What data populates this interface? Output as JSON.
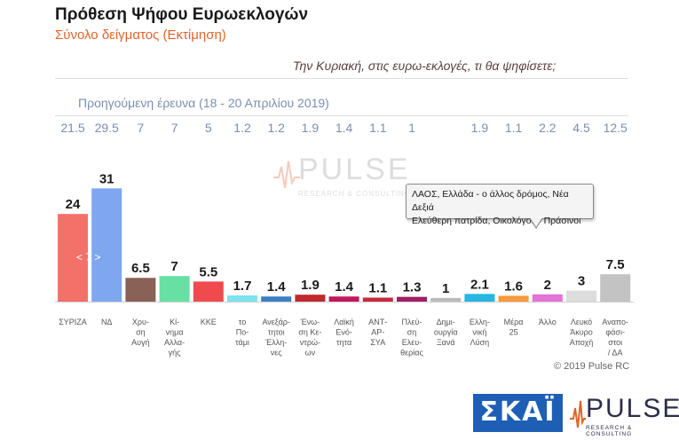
{
  "title": "Πρόθεση Ψήφου Ευρωεκλογών",
  "subtitle": "Σύνολο δείγματος   (Εκτίμηση)",
  "question": "Την Κυριακή, στις ευρω-εκλογές, τι θα ψηφίσετε;",
  "previous_survey_label": "Προηγούμενη έρευνα  (18 - 20 Απριλίου 2019)",
  "pager": "< 7 >",
  "tooltip": {
    "line1": "ΛΑΟΣ, Ελλάδα - ο άλλος δρόμος, Νέα Δεξιά",
    "line2": "Ελεύθερη πατρίδα, Οικολόγοι – Πράσινοι"
  },
  "watermark": {
    "name": "PULSE",
    "tagline": "RESEARCH & CONSULTING"
  },
  "copyright": "© 2019 Pulse RC",
  "logos": {
    "skai": "ΣΚΑΪ",
    "pulse": "PULSE",
    "pulse_tagline": "RESEARCH & CONSULTING"
  },
  "chart_data": {
    "type": "bar",
    "ylim": [
      0,
      34
    ],
    "categories": [
      [
        "ΣΥΡΙΖΑ"
      ],
      [
        "ΝΔ"
      ],
      [
        "Χρυ-",
        "ση",
        "Αυγή"
      ],
      [
        "Κί-",
        "νημα",
        "Αλλα-",
        "γής"
      ],
      [
        "ΚΚΕ"
      ],
      [
        "το",
        "Πο-",
        "τάμι"
      ],
      [
        "Ανεξάρ-",
        "τητοι",
        "Έλλη-",
        "νες"
      ],
      [
        "Ένω-",
        "ση Κε-",
        "ντρώ-",
        "ων"
      ],
      [
        "Λαϊκή",
        "Ενό-",
        "τητα"
      ],
      [
        "ΑΝΤ-",
        "ΑΡ-",
        "ΣΥΑ"
      ],
      [
        "Πλεύ-",
        "ση",
        "Ελευ-",
        "θερίας"
      ],
      [
        "Δημι-",
        "ουργία",
        "Ξανά"
      ],
      [
        "Ελλη-",
        "νική",
        "Λύση"
      ],
      [
        "Μέρα",
        "25"
      ],
      [
        "Άλλο"
      ],
      [
        "Λευκό",
        "Άκυρο",
        "Αποχή"
      ],
      [
        "Αναπο-",
        "φάσι-",
        "στοι",
        "/ ΔΑ"
      ]
    ],
    "values": [
      24,
      31,
      6.5,
      7,
      5.5,
      1.7,
      1.4,
      1.9,
      1.4,
      1.1,
      1.3,
      1,
      2.1,
      1.6,
      2,
      3,
      7.5
    ],
    "value_labels": [
      "24",
      "31",
      "6.5",
      "7",
      "5.5",
      "1.7",
      "1.4",
      "1.9",
      "1.4",
      "1.1",
      "1.3",
      "1",
      "2.1",
      "1.6",
      "2",
      "3",
      "7.5"
    ],
    "previous": [
      "21.5",
      "29.5",
      "7",
      "7",
      "5",
      "1.2",
      "1.2",
      "1.9",
      "1.4",
      "1.1",
      "1",
      "",
      "1.9",
      "1.1",
      "2.2",
      "4.5",
      "12.5"
    ],
    "colors": [
      "#f4716a",
      "#7fa7f0",
      "#8a6155",
      "#67e0a3",
      "#ef4b4f",
      "#7de3ee",
      "#3d7fc4",
      "#c02a2f",
      "#c2185b",
      "#c82a40",
      "#a01e63",
      "#b9b9b9",
      "#27b7e3",
      "#f69a3a",
      "#e273d8",
      "#dcdcdc",
      "#c3c3c3"
    ],
    "grid": false,
    "legend": "none"
  }
}
